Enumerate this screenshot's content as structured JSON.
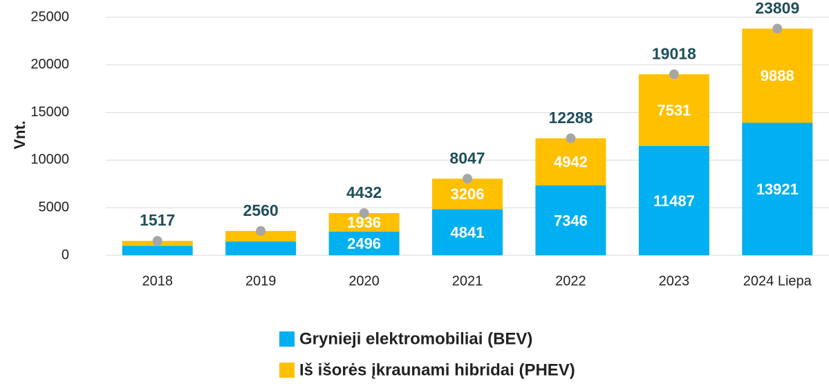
{
  "chart_data": {
    "type": "bar",
    "stacked": true,
    "y_label": "Vnt.",
    "categories": [
      "2018",
      "2019",
      "2020",
      "2021",
      "2022",
      "2023",
      "2024 Liepa"
    ],
    "series": [
      {
        "name": "Grynieji elektromobiliai  (BEV)",
        "color": "#00b0f0",
        "values": [
          1000,
          1450,
          2496,
          4841,
          7346,
          11487,
          13921
        ],
        "value_labels": [
          null,
          null,
          "2496",
          "4841",
          "7346",
          "11487",
          "13921"
        ]
      },
      {
        "name": "Iš išorės įkraunami hibridai  (PHEV)",
        "color": "#ffc000",
        "values": [
          517,
          1110,
          1936,
          3206,
          4942,
          7531,
          9888
        ],
        "value_labels": [
          null,
          null,
          "1936",
          "3206",
          "4942",
          "7531",
          "9888"
        ]
      }
    ],
    "totals": {
      "values": [
        1517,
        2560,
        4432,
        8047,
        12288,
        19018,
        23809
      ],
      "color": "#a6a6a6",
      "label_color": "#1f4e5a"
    },
    "ylim": [
      0,
      25000
    ],
    "yticks": [
      0,
      5000,
      10000,
      15000,
      20000,
      25000
    ],
    "grid": true
  }
}
